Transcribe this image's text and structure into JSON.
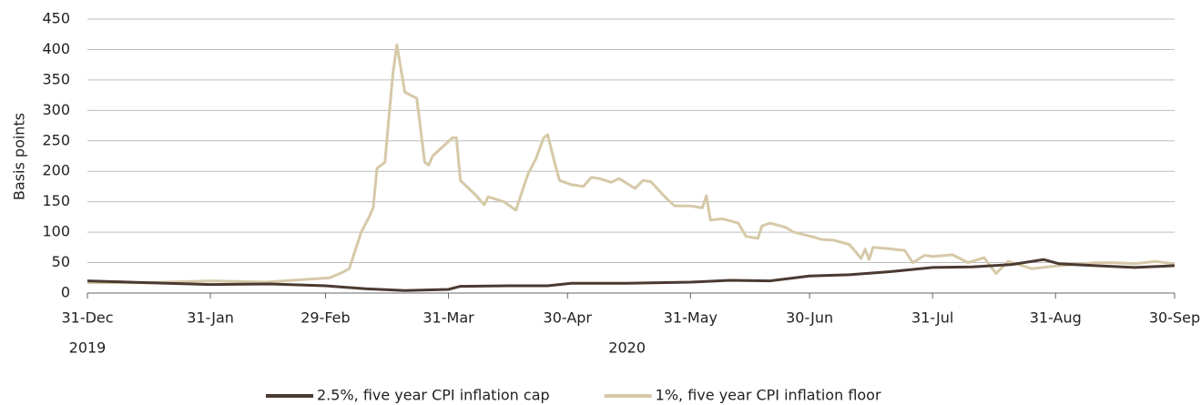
{
  "chart_data": {
    "type": "line",
    "y_label": "Basis points",
    "xlim": [
      "2019-12-31",
      "2020-09-30"
    ],
    "xticks": [
      {
        "value": "2019-12-31",
        "label": "31-Dec"
      },
      {
        "value": "2020-01-31",
        "label": "31-Jan"
      },
      {
        "value": "2020-02-29",
        "label": "29-Feb"
      },
      {
        "value": "2020-03-31",
        "label": "31-Mar"
      },
      {
        "value": "2020-04-30",
        "label": "30-Apr"
      },
      {
        "value": "2020-05-31",
        "label": "31-May"
      },
      {
        "value": "2020-06-30",
        "label": "30-Jun"
      },
      {
        "value": "2020-07-31",
        "label": "31-Jul"
      },
      {
        "value": "2020-08-31",
        "label": "31-Aug"
      },
      {
        "value": "2020-09-30",
        "label": "30-Sep"
      }
    ],
    "year_labels": [
      {
        "text": "2019",
        "x": "2019-12-31"
      },
      {
        "text": "2020",
        "x": "2020-05-15"
      }
    ],
    "ylim": [
      0,
      450
    ],
    "yticks": [
      0,
      50,
      100,
      150,
      200,
      250,
      300,
      350,
      400,
      450
    ],
    "grid": true,
    "legend": "bottom",
    "series": [
      {
        "name": "2.5%, five year CPI inflation cap",
        "color": "#4a3a30",
        "x": [
          "2019-12-31",
          "2020-01-15",
          "2020-01-31",
          "2020-02-15",
          "2020-02-29",
          "2020-03-10",
          "2020-03-20",
          "2020-03-31",
          "2020-04-03",
          "2020-04-15",
          "2020-04-25",
          "2020-05-01",
          "2020-05-15",
          "2020-05-31",
          "2020-06-10",
          "2020-06-20",
          "2020-06-30",
          "2020-07-10",
          "2020-07-20",
          "2020-07-31",
          "2020-08-10",
          "2020-08-20",
          "2020-08-28",
          "2020-09-01",
          "2020-09-10",
          "2020-09-20",
          "2020-09-30"
        ],
        "values": [
          20,
          17,
          14,
          15,
          12,
          7,
          4,
          6,
          11,
          12,
          12,
          16,
          16,
          18,
          21,
          20,
          28,
          30,
          35,
          42,
          43,
          47,
          55,
          48,
          45,
          42,
          45
        ]
      },
      {
        "name": "1%, five year CPI inflation floor",
        "color": "#d6c9a8",
        "x": [
          "2019-12-31",
          "2020-01-15",
          "2020-01-31",
          "2020-02-14",
          "2020-03-01",
          "2020-03-04",
          "2020-03-06",
          "2020-03-09",
          "2020-03-11",
          "2020-03-12",
          "2020-03-13",
          "2020-03-15",
          "2020-03-16",
          "2020-03-17",
          "2020-03-18",
          "2020-03-20",
          "2020-03-23",
          "2020-03-25",
          "2020-03-26",
          "2020-03-27",
          "2020-04-01",
          "2020-04-02",
          "2020-04-03",
          "2020-04-07",
          "2020-04-09",
          "2020-04-10",
          "2020-04-14",
          "2020-04-17",
          "2020-04-20",
          "2020-04-22",
          "2020-04-24",
          "2020-04-25",
          "2020-04-27",
          "2020-04-28",
          "2020-05-01",
          "2020-05-04",
          "2020-05-06",
          "2020-05-08",
          "2020-05-11",
          "2020-05-13",
          "2020-05-17",
          "2020-05-19",
          "2020-05-21",
          "2020-05-25",
          "2020-05-27",
          "2020-05-31",
          "2020-06-03",
          "2020-06-04",
          "2020-06-05",
          "2020-06-08",
          "2020-06-12",
          "2020-06-14",
          "2020-06-17",
          "2020-06-18",
          "2020-06-20",
          "2020-06-24",
          "2020-06-26",
          "2020-07-01",
          "2020-07-03",
          "2020-07-06",
          "2020-07-10",
          "2020-07-13",
          "2020-07-14",
          "2020-07-15",
          "2020-07-16",
          "2020-07-20",
          "2020-07-24",
          "2020-07-26",
          "2020-07-29",
          "2020-07-31",
          "2020-08-05",
          "2020-08-09",
          "2020-08-13",
          "2020-08-16",
          "2020-08-19",
          "2020-08-25",
          "2020-09-01",
          "2020-09-05",
          "2020-09-10",
          "2020-09-15",
          "2020-09-20",
          "2020-09-25",
          "2020-09-30"
        ],
        "values": [
          17,
          17,
          20,
          18,
          25,
          33,
          40,
          100,
          125,
          140,
          205,
          215,
          290,
          360,
          408,
          330,
          320,
          215,
          210,
          225,
          255,
          255,
          185,
          160,
          145,
          158,
          150,
          136,
          195,
          220,
          255,
          260,
          208,
          185,
          178,
          175,
          190,
          188,
          182,
          188,
          172,
          185,
          183,
          155,
          143,
          143,
          140,
          160,
          120,
          122,
          115,
          93,
          90,
          110,
          115,
          108,
          100,
          92,
          88,
          87,
          80,
          57,
          72,
          55,
          75,
          73,
          70,
          50,
          62,
          60,
          63,
          50,
          58,
          32,
          52,
          40,
          45,
          47,
          50,
          50,
          48,
          52,
          48
        ]
      }
    ]
  }
}
